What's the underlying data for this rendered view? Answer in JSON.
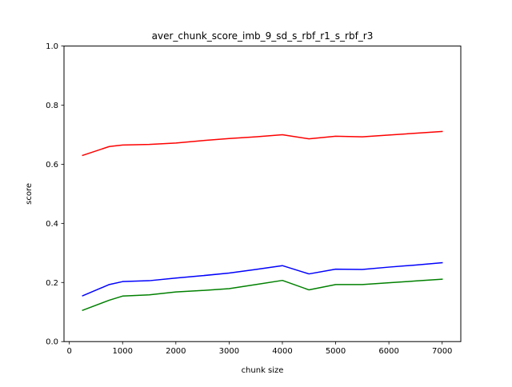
{
  "chart_data": {
    "type": "line",
    "title": "aver_chunk_score_imb_9_sd_s_rbf_r1_s_rbf_r3",
    "xlabel": "chunk size",
    "ylabel": "score",
    "xlim": [
      -100,
      7350
    ],
    "ylim": [
      0.0,
      1.0
    ],
    "x_ticks": [
      0,
      1000,
      2000,
      3000,
      4000,
      5000,
      6000,
      7000
    ],
    "y_ticks": [
      0.0,
      0.2,
      0.4,
      0.6,
      0.8,
      1.0
    ],
    "x_tick_labels": [
      "0",
      "1000",
      "2000",
      "3000",
      "4000",
      "5000",
      "6000",
      "7000"
    ],
    "y_tick_labels": [
      "0.0",
      "0.2",
      "0.4",
      "0.6",
      "0.8",
      "1.0"
    ],
    "grid": false,
    "x": [
      250,
      750,
      1000,
      1500,
      2000,
      2500,
      3000,
      3500,
      4000,
      4500,
      5000,
      5500,
      6000,
      6500,
      7000
    ],
    "series": [
      {
        "color": "#ff0000",
        "values": [
          0.63,
          0.66,
          0.665,
          0.667,
          0.672,
          0.68,
          0.687,
          0.693,
          0.7,
          0.686,
          0.695,
          0.693,
          0.699,
          0.705,
          0.711
        ]
      },
      {
        "color": "#0000ff",
        "values": [
          0.155,
          0.193,
          0.203,
          0.206,
          0.215,
          0.223,
          0.232,
          0.244,
          0.257,
          0.229,
          0.245,
          0.244,
          0.252,
          0.259,
          0.267
        ]
      },
      {
        "color": "#008000",
        "values": [
          0.106,
          0.14,
          0.154,
          0.158,
          0.168,
          0.173,
          0.179,
          0.193,
          0.207,
          0.175,
          0.193,
          0.193,
          0.199,
          0.205,
          0.211
        ]
      }
    ]
  }
}
